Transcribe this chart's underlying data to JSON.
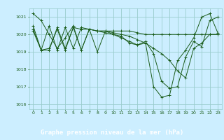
{
  "title": "Graphe pression niveau de la mer (hPa)",
  "bg_color": "#cceeff",
  "plot_bg_color": "#cceeff",
  "label_bg_color": "#2d7a2d",
  "grid_color": "#99cccc",
  "line_color": "#1a5c1a",
  "marker_color": "#1a5c1a",
  "title_color": "#ffffff",
  "tick_color": "#1a5c1a",
  "xlim": [
    -0.5,
    23.5
  ],
  "ylim": [
    1015.7,
    1021.5
  ],
  "yticks": [
    1016,
    1017,
    1018,
    1019,
    1020,
    1021
  ],
  "xticks": [
    0,
    1,
    2,
    3,
    4,
    5,
    6,
    7,
    8,
    9,
    10,
    11,
    12,
    13,
    14,
    15,
    16,
    17,
    18,
    19,
    20,
    21,
    22,
    23
  ],
  "series": [
    [
      1021.2,
      1020.8,
      1020.0,
      1019.2,
      1019.8,
      1020.5,
      1019.1,
      1020.3,
      1019.0,
      1020.2,
      1020.2,
      1020.2,
      1020.2,
      1020.1,
      1020.0,
      1020.0,
      1020.0,
      1020.0,
      1020.0,
      1020.0,
      1020.0,
      1020.0,
      1020.0,
      1020.0
    ],
    [
      1020.5,
      1019.1,
      1019.1,
      1020.4,
      1019.2,
      1020.4,
      1020.3,
      1020.3,
      1020.2,
      1020.2,
      1020.1,
      1020.0,
      1019.9,
      1019.7,
      1019.5,
      1019.2,
      1018.9,
      1018.5,
      1017.9,
      1017.5,
      1019.2,
      1019.5,
      1020.0,
      1020.0
    ],
    [
      1020.3,
      1019.1,
      1020.5,
      1019.1,
      1020.4,
      1019.2,
      1020.4,
      1020.3,
      1020.2,
      1020.2,
      1020.0,
      1019.8,
      1019.6,
      1019.4,
      1019.6,
      1018.9,
      1017.3,
      1016.9,
      1017.0,
      1018.7,
      1019.6,
      1019.3,
      1020.8,
      1021.0
    ],
    [
      1020.2,
      1019.1,
      1019.2,
      1020.3,
      1019.1,
      1020.4,
      1019.1,
      1020.3,
      1020.2,
      1020.1,
      1020.0,
      1019.9,
      1019.5,
      1019.4,
      1019.5,
      1017.0,
      1016.4,
      1016.5,
      1018.5,
      1019.1,
      1019.8,
      1021.0,
      1021.2,
      1020.1
    ]
  ]
}
